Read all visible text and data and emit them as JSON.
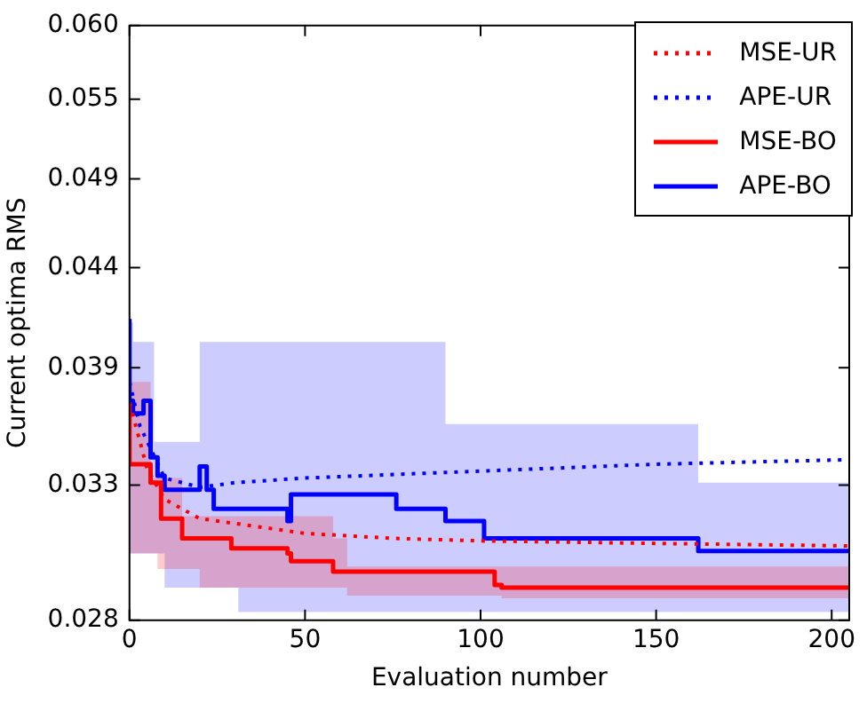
{
  "chart_data": {
    "type": "step",
    "xlabel": "Evaluation number",
    "ylabel": "Current optima RMS",
    "log": "y",
    "xlim": [
      0,
      205
    ],
    "xticks": [
      0,
      50,
      100,
      150,
      200
    ],
    "ylim": [
      0.028,
      0.06
    ],
    "yticks": [
      0.028,
      {
        "value": 0.0333,
        "label": "0.033"
      },
      {
        "value": 0.0387,
        "label": "0.039"
      },
      0.044,
      {
        "value": 0.0493,
        "label": "0.049"
      },
      {
        "value": 0.0546,
        "label": "0.055"
      },
      {
        "value": 0.06,
        "label": "0.060"
      }
    ],
    "grid": false,
    "legend": "top right",
    "marker": "none",
    "series": [
      {
        "name": "MSE-UR",
        "type": "line",
        "line_style": "dotted",
        "color": "#ff0000",
        "x": [
          0,
          3,
          5,
          10,
          20,
          30,
          50,
          75,
          100,
          150,
          205
        ],
        "values": [
          0.037,
          0.0352,
          0.034,
          0.0327,
          0.0319,
          0.0317,
          0.0313,
          0.0311,
          0.031,
          0.0309,
          0.0308
        ]
      },
      {
        "name": "APE-UR",
        "type": "line",
        "line_style": "dotted",
        "color": "#0000ff",
        "x": [
          0,
          3,
          10,
          20,
          30,
          50,
          100,
          150,
          205
        ],
        "values": [
          0.038,
          0.0359,
          0.0336,
          0.0332,
          0.0334,
          0.0336,
          0.0339,
          0.0342,
          0.0344
        ]
      },
      {
        "name": "MSE-BO",
        "type": "step",
        "line_style": "solid",
        "color": "#ff0000",
        "x": [
          0,
          1,
          6,
          8,
          9,
          15,
          20,
          29,
          30,
          45,
          46,
          58,
          62,
          104,
          106,
          197,
          205
        ],
        "values": [
          0.037,
          0.0342,
          0.0342,
          0.0334,
          0.0334,
          0.0319,
          0.0311,
          0.0311,
          0.0307,
          0.0307,
          0.0305,
          0.0302,
          0.0298,
          0.0298,
          0.0293,
          0.0292,
          0.0292
        ],
        "upper": [
          0.038,
          0.038,
          0.038,
          0.0336,
          0.0336,
          0.0336,
          0.032,
          0.032,
          0.032,
          0.032,
          0.032,
          0.032,
          0.0311,
          0.03,
          0.03,
          0.03,
          0.03
        ],
        "lower": [
          0.0305,
          0.0305,
          0.0305,
          0.0305,
          0.0299,
          0.0299,
          0.0299,
          0.0292,
          0.0292,
          0.0292,
          0.0292,
          0.0292,
          0.0292,
          0.0289,
          0.0289,
          0.0288,
          0.0288
        ]
      },
      {
        "name": "APE-BO",
        "type": "step",
        "line_style": "solid",
        "color": "#0000ff",
        "x": [
          0,
          1,
          4,
          6,
          7,
          8,
          10,
          20,
          22,
          24,
          31,
          45,
          46,
          76,
          90,
          101,
          162,
          196,
          205
        ],
        "values": [
          0.0412,
          0.0371,
          0.0365,
          0.0371,
          0.0345,
          0.0345,
          0.0337,
          0.0331,
          0.0341,
          0.0331,
          0.0323,
          0.0323,
          0.0318,
          0.0329,
          0.0323,
          0.0318,
          0.0311,
          0.0306,
          0.0306
        ],
        "upper": [
          0.049,
          0.041,
          0.04,
          0.04,
          0.04,
          0.0352,
          0.0352,
          0.0352,
          0.04,
          0.04,
          0.04,
          0.04,
          0.04,
          0.04,
          0.04,
          0.036,
          0.036,
          0.0334,
          0.0334
        ],
        "lower": [
          0.0305,
          0.0305,
          0.0305,
          0.0305,
          0.0305,
          0.0305,
          0.0305,
          0.0292,
          0.0292,
          0.0292,
          0.0292,
          0.0283,
          0.0283,
          0.0283,
          0.0283,
          0.0283,
          0.0283,
          0.0283,
          0.0283
        ]
      }
    ]
  }
}
